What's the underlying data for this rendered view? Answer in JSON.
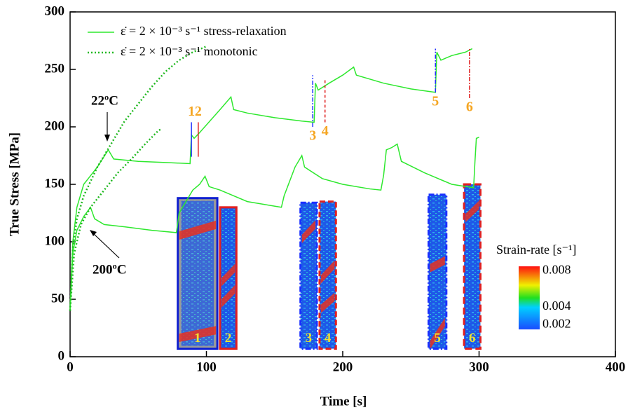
{
  "chart_data": {
    "type": "line",
    "x_label": "Time [s]",
    "y_label": "True Stress [MPa]",
    "xlim": [
      0,
      400
    ],
    "ylim": [
      0,
      300
    ],
    "xticks": [
      0,
      100,
      200,
      300,
      400
    ],
    "yticks": [
      0,
      50,
      100,
      150,
      200,
      250,
      300
    ],
    "series": [
      {
        "name": "ε̇ = 2 × 10⁻³ s⁻¹  stress-relaxation",
        "color": "#2ee82e",
        "style": "solid",
        "x": [
          0,
          2,
          5,
          10,
          20,
          28,
          32,
          50,
          70,
          88,
          89,
          91,
          95,
          110,
          118,
          120,
          130,
          150,
          170,
          179,
          180,
          182,
          190,
          200,
          208,
          210,
          230,
          250,
          268,
          269,
          272,
          280,
          290,
          295
        ],
        "values": [
          40,
          100,
          130,
          150,
          165,
          180,
          172,
          170,
          169,
          168,
          193,
          190,
          195,
          215,
          226,
          215,
          212,
          208,
          205,
          204,
          238,
          232,
          238,
          245,
          252,
          245,
          238,
          233,
          230,
          265,
          258,
          262,
          265,
          268
        ]
      },
      {
        "name": "ε̇ = 2 × 10⁻³ s⁻¹  monotonic",
        "color": "#1fb81f",
        "style": "dotted",
        "x": [
          0,
          2,
          5,
          10,
          20,
          30,
          40,
          50,
          60,
          70,
          80,
          90,
          100
        ],
        "values": [
          40,
          95,
          120,
          140,
          165,
          185,
          205,
          220,
          235,
          248,
          258,
          265,
          270
        ]
      },
      {
        "color": "#2ee82e",
        "style": "solid",
        "x": [
          0,
          2,
          5,
          10,
          15,
          18,
          25,
          40,
          60,
          78,
          80,
          90,
          95,
          99,
          102,
          110,
          130,
          155,
          157,
          165,
          170,
          172,
          185,
          200,
          220,
          228,
          230,
          232,
          236,
          240,
          243,
          260,
          280,
          296,
          297,
          298,
          300
        ],
        "values": [
          40,
          90,
          110,
          122,
          130,
          120,
          115,
          113,
          110,
          108,
          125,
          145,
          150,
          157,
          148,
          145,
          135,
          130,
          140,
          165,
          175,
          165,
          155,
          150,
          146,
          145,
          158,
          180,
          182,
          185,
          170,
          160,
          150,
          147,
          170,
          190,
          191
        ]
      },
      {
        "color": "#1fb81f",
        "style": "dotted",
        "x": [
          0,
          3,
          8,
          15,
          25,
          35,
          45,
          55,
          65,
          67
        ],
        "values": [
          40,
          90,
          115,
          130,
          145,
          160,
          172,
          185,
          197,
          198
        ]
      }
    ],
    "annotations": [
      {
        "text": "22ºC"
      },
      {
        "text": "200ºC"
      }
    ],
    "markers": [
      {
        "label": "1",
        "x": 89,
        "y": [
          174,
          204
        ],
        "color": "#2030ff",
        "dash": "",
        "label_pos": "above"
      },
      {
        "label": "2",
        "x": 94,
        "y": [
          174,
          204
        ],
        "color": "#e02020",
        "dash": "",
        "label_pos": "above"
      },
      {
        "label": "3",
        "x": 178,
        "y": [
          200,
          245
        ],
        "color": "#2030ff",
        "dash": "6 2 2 2",
        "label_pos": "below"
      },
      {
        "label": "4",
        "x": 187,
        "y": [
          204,
          242
        ],
        "color": "#e02020",
        "dash": "4 3",
        "label_pos": "below"
      },
      {
        "label": "5",
        "x": 268,
        "y": [
          230,
          268
        ],
        "color": "#2030ff",
        "dash": "6 2 2 2",
        "label_pos": "below"
      },
      {
        "label": "6",
        "x": 293,
        "y": [
          225,
          268
        ],
        "color": "#e02020",
        "dash": "6 2 2 2",
        "label_pos": "below"
      }
    ],
    "insets": [
      {
        "label": "1"
      },
      {
        "label": "2"
      },
      {
        "label": "3"
      },
      {
        "label": "4"
      },
      {
        "label": "5"
      },
      {
        "label": "6"
      }
    ],
    "colorbar": {
      "title": "Strain-rate [s⁻¹]",
      "clim": [
        0.0015,
        0.0085
      ],
      "ticks": [
        0.008,
        0.004,
        0.002
      ]
    }
  }
}
